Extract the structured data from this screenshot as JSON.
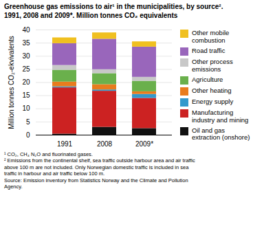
{
  "chart_data": {
    "type": "bar",
    "stacked": true,
    "title": "Greenhouse gas emissions to air¹ in the municipalities, by source².\n1991, 2008 and 2009*. Million tonnes CO₂ equivalents",
    "categories": [
      "1991",
      "2008",
      "2009*"
    ],
    "series": [
      {
        "name": "Oil and gas\nextraction (onshore)",
        "color": "#111111",
        "values": [
          0.4,
          3.0,
          2.5
        ]
      },
      {
        "name": "Manufacturing\nindustry and mining",
        "color": "#cc2222",
        "values": [
          17.6,
          13.7,
          11.5
        ]
      },
      {
        "name": "Energy supply",
        "color": "#3399cc",
        "values": [
          0.4,
          0.5,
          1.5
        ]
      },
      {
        "name": "Other heating",
        "color": "#e87c1e",
        "values": [
          1.8,
          2.0,
          1.0
        ]
      },
      {
        "name": "Agriculture",
        "color": "#6ab04c",
        "values": [
          4.5,
          4.2,
          4.0
        ]
      },
      {
        "name": "Other process\nemissions",
        "color": "#c8c8c8",
        "values": [
          1.8,
          1.5,
          1.5
        ]
      },
      {
        "name": "Road traffic",
        "color": "#9966bb",
        "values": [
          8.3,
          11.6,
          11.5
        ]
      },
      {
        "name": "Other mobile\ncombustion",
        "color": "#f0c020",
        "values": [
          2.2,
          2.4,
          2.0
        ]
      }
    ],
    "ylim": [
      0,
      40
    ],
    "yticks": [
      0,
      5,
      10,
      15,
      20,
      25,
      30,
      35,
      40
    ],
    "ylabel": "Million tonnes CO₂-ekvivalents",
    "footnote": "¹ CO₂, CH₄ N₂O and fluorinated gases.\n² Emissions from the continental shelf, sea traffic outside harbour area and air traffic\nabove 100 m are not included. Only Norwegian domestic traffic is included in sea\ntraffic in harbour and air traffic below 100 m.\nSource: Emission inventory from Statistics Norway and the Climate and Pollution\nAgency.",
    "grid": true,
    "legend": "right"
  }
}
